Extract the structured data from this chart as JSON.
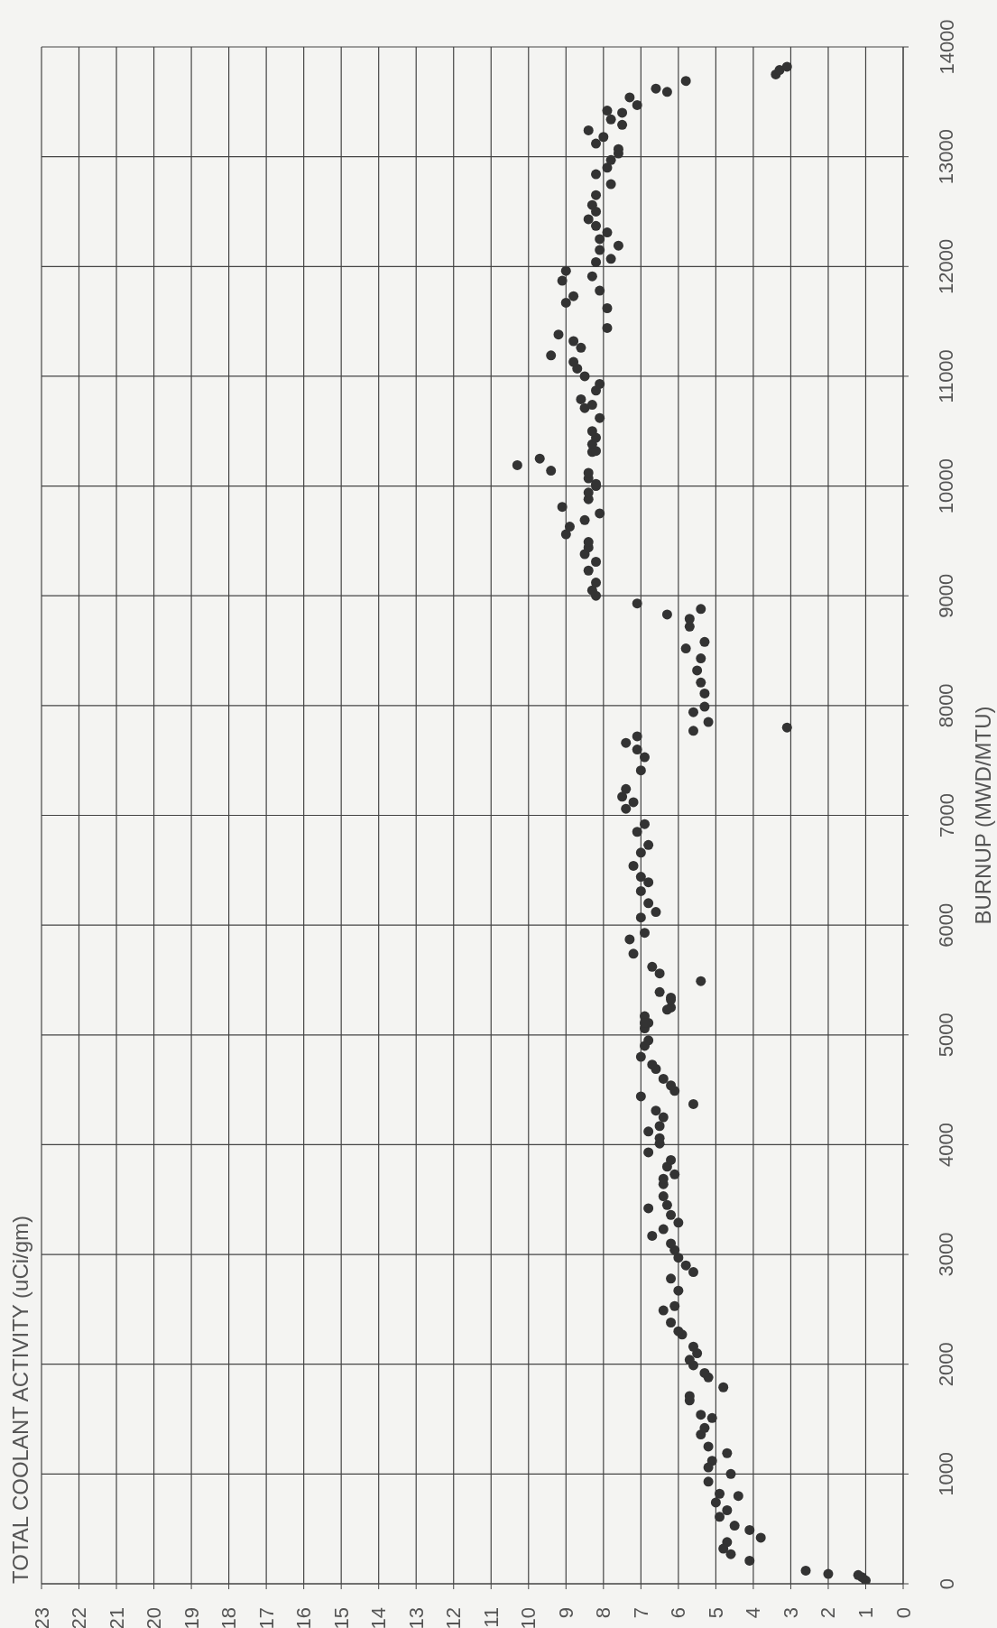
{
  "chart_data": {
    "type": "scatter",
    "title": "TOTAL COOLANT ACTIVITY (uCi/gm)",
    "ylabel": "BURNUP (MWD/MTU)",
    "xlim": [
      23,
      0
    ],
    "xticks": [
      23,
      22,
      21,
      20,
      19,
      18,
      17,
      16,
      15,
      14,
      13,
      12,
      11,
      10,
      9,
      8,
      7,
      6,
      5,
      4,
      3,
      2,
      1,
      0
    ],
    "ylim": [
      0,
      14000
    ],
    "yticks": [
      0,
      1000,
      2000,
      3000,
      4000,
      5000,
      6000,
      7000,
      8000,
      9000,
      10000,
      11000,
      12000,
      13000,
      14000
    ],
    "grid": true,
    "marker": "circle",
    "series": [
      {
        "color": "#333333",
        "x": [
          1.0,
          1.1,
          1.2,
          2.0,
          2.6,
          4.1,
          3.8,
          4.1,
          4.6,
          4.7,
          4.8,
          4.5,
          4.7,
          4.9,
          5.0,
          4.9,
          4.4,
          4.6,
          4.7,
          5.2,
          5.1,
          5.2,
          5.2,
          5.4,
          5.3,
          5.1,
          5.4,
          5.7,
          5.7,
          4.8,
          5.2,
          5.3,
          5.6,
          5.7,
          5.5,
          5.6,
          5.9,
          6.0,
          6.2,
          6.4,
          6.1,
          5.6,
          5.8,
          6.0,
          6.2,
          6.0,
          6.1,
          6.2,
          6.4,
          6.7,
          6.0,
          6.2,
          6.3,
          6.8,
          6.4,
          6.4,
          6.4,
          6.1,
          6.3,
          6.2,
          6.8,
          6.5,
          6.5,
          6.8,
          6.5,
          6.4,
          6.6,
          5.6,
          7.0,
          6.1,
          6.2,
          6.4,
          6.6,
          6.7,
          7.0,
          6.9,
          6.8,
          6.9,
          6.8,
          6.9,
          6.2,
          6.2,
          6.5,
          6.9,
          6.3,
          6.2,
          5.4,
          6.5,
          6.7,
          7.2,
          7.3,
          6.9,
          7.0,
          6.6,
          6.8,
          7.0,
          6.8,
          7.0,
          7.2,
          7.0,
          6.8,
          7.1,
          6.9,
          7.4,
          7.2,
          7.5,
          7.4,
          7.0,
          6.9,
          7.1,
          7.4,
          7.1,
          3.1,
          5.6,
          5.2,
          5.6,
          5.3,
          5.3,
          5.4,
          5.5,
          5.4,
          5.8,
          5.3,
          5.7,
          5.7,
          5.4,
          6.3,
          7.1,
          8.2,
          8.3,
          8.2,
          8.4,
          8.2,
          8.5,
          8.4,
          8.4,
          9.0,
          8.9,
          8.5,
          8.1,
          9.1,
          8.4,
          8.4,
          8.2,
          8.2,
          8.4,
          8.4,
          9.4,
          10.3,
          9.7,
          8.3,
          8.2,
          8.3,
          8.2,
          8.3,
          8.1,
          8.5,
          8.3,
          8.6,
          8.2,
          8.1,
          8.5,
          8.7,
          8.8,
          9.4,
          8.6,
          8.8,
          9.2,
          7.9,
          7.9,
          9.0,
          8.8,
          8.1,
          9.1,
          8.3,
          9.0,
          8.2,
          7.8,
          8.1,
          7.6,
          8.1,
          7.9,
          8.2,
          8.4,
          8.2,
          8.3,
          8.2,
          7.8,
          8.2,
          7.9,
          7.8,
          7.6,
          7.6,
          8.2,
          8.0,
          8.4,
          7.5,
          7.8,
          7.5,
          7.9,
          7.1,
          7.3,
          6.3,
          6.6,
          5.8,
          3.4,
          3.3,
          3.1
        ],
        "values": [
          30,
          60,
          80,
          90,
          120,
          210,
          420,
          490,
          270,
          380,
          320,
          530,
          670,
          610,
          740,
          820,
          800,
          1000,
          1190,
          930,
          1120,
          1060,
          1250,
          1360,
          1420,
          1510,
          1540,
          1670,
          1710,
          1790,
          1880,
          1920,
          1990,
          2040,
          2100,
          2160,
          2270,
          2300,
          2380,
          2490,
          2530,
          2840,
          2900,
          2670,
          2780,
          2970,
          3040,
          3100,
          3230,
          3170,
          3290,
          3360,
          3450,
          3420,
          3530,
          3640,
          3690,
          3730,
          3800,
          3860,
          3930,
          4010,
          4060,
          4120,
          4170,
          4250,
          4310,
          4370,
          4440,
          4490,
          4540,
          4600,
          4690,
          4730,
          4800,
          4900,
          4950,
          5060,
          5110,
          5170,
          5250,
          5340,
          5390,
          5110,
          5230,
          5320,
          5490,
          5560,
          5620,
          5740,
          5870,
          5930,
          6070,
          6120,
          6200,
          6310,
          6390,
          6440,
          6540,
          6660,
          6730,
          6850,
          6920,
          7060,
          7120,
          7170,
          7240,
          7410,
          7530,
          7600,
          7660,
          7720,
          7800,
          7770,
          7850,
          7940,
          7990,
          8110,
          8210,
          8320,
          8430,
          8520,
          8580,
          8720,
          8790,
          8880,
          8830,
          8930,
          9000,
          9050,
          9120,
          9230,
          9310,
          9380,
          9440,
          9490,
          9560,
          9630,
          9690,
          9750,
          9810,
          9880,
          9940,
          10000,
          10020,
          10070,
          10120,
          10140,
          10190,
          10250,
          10310,
          10320,
          10380,
          10440,
          10500,
          10620,
          10710,
          10740,
          10790,
          10870,
          10930,
          11000,
          11070,
          11130,
          11190,
          11260,
          11320,
          11380,
          11440,
          11620,
          11670,
          11730,
          11780,
          11870,
          11910,
          11960,
          12040,
          12070,
          12150,
          12190,
          12250,
          12310,
          12370,
          12430,
          12500,
          12560,
          12650,
          12750,
          12840,
          12900,
          12970,
          13030,
          13070,
          13120,
          13180,
          13240,
          13290,
          13340,
          13400,
          13420,
          13470,
          13540,
          13590,
          13620,
          13690,
          13750,
          13790,
          13820
        ]
      }
    ]
  }
}
